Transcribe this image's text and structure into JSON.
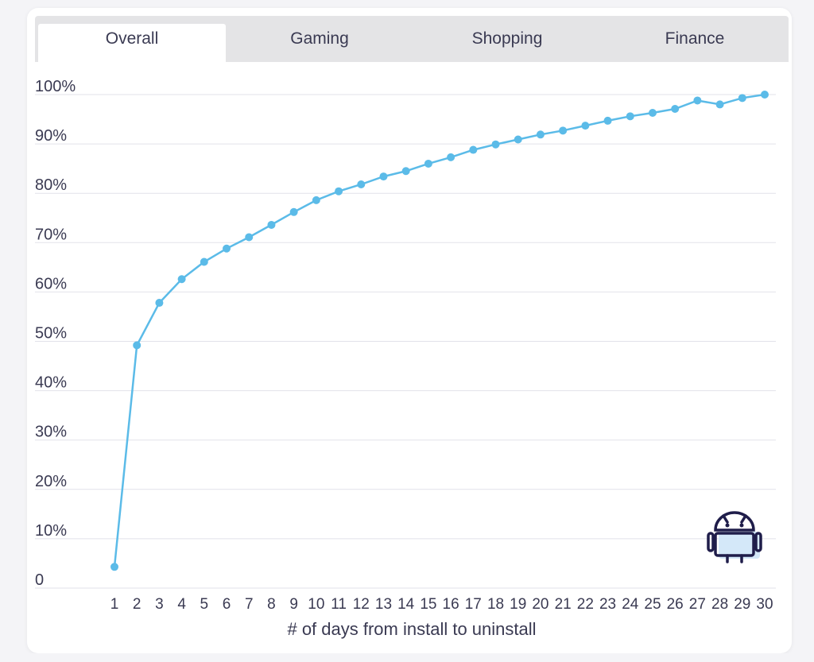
{
  "tabs": [
    {
      "label": "Overall",
      "active": true
    },
    {
      "label": "Gaming",
      "active": false
    },
    {
      "label": "Shopping",
      "active": false
    },
    {
      "label": "Finance",
      "active": false
    }
  ],
  "platform_icon": "android-icon",
  "colors": {
    "line": "#5bbbe8",
    "grid": "#e2e2ea",
    "text": "#3a3a52",
    "icon": "#1f1d4a",
    "icon_fill": "#cfe6f8"
  },
  "chart_data": {
    "type": "line",
    "title": "",
    "xlabel": "# of days from install to uninstall",
    "ylabel": "",
    "x": [
      1,
      2,
      3,
      4,
      5,
      6,
      7,
      8,
      9,
      10,
      11,
      12,
      13,
      14,
      15,
      16,
      17,
      18,
      19,
      20,
      21,
      22,
      23,
      24,
      25,
      26,
      27,
      28,
      29,
      30
    ],
    "x_tick_labels": [
      "1",
      "2",
      "3",
      "4",
      "5",
      "6",
      "7",
      "8",
      "9",
      "10",
      "11",
      "12",
      "13",
      "14",
      "15",
      "16",
      "17",
      "18",
      "19",
      "20",
      "21",
      "22",
      "23",
      "24",
      "25",
      "26",
      "27",
      "28",
      "29",
      "30"
    ],
    "y_tick_labels": [
      "0",
      "10%",
      "20%",
      "30%",
      "40%",
      "50%",
      "60%",
      "70%",
      "80%",
      "90%",
      "100%"
    ],
    "ylim": [
      0,
      100
    ],
    "grid": true,
    "legend": "none",
    "series": [
      {
        "values": [
          4.3,
          49.2,
          57.8,
          62.6,
          66.1,
          68.8,
          71.1,
          73.6,
          76.2,
          78.6,
          80.4,
          81.8,
          83.4,
          84.5,
          86.0,
          87.3,
          88.8,
          89.9,
          90.9,
          91.9,
          92.7,
          93.7,
          94.7,
          95.6,
          96.3,
          97.1,
          98.8,
          98.0,
          99.3,
          100.0
        ]
      }
    ]
  }
}
